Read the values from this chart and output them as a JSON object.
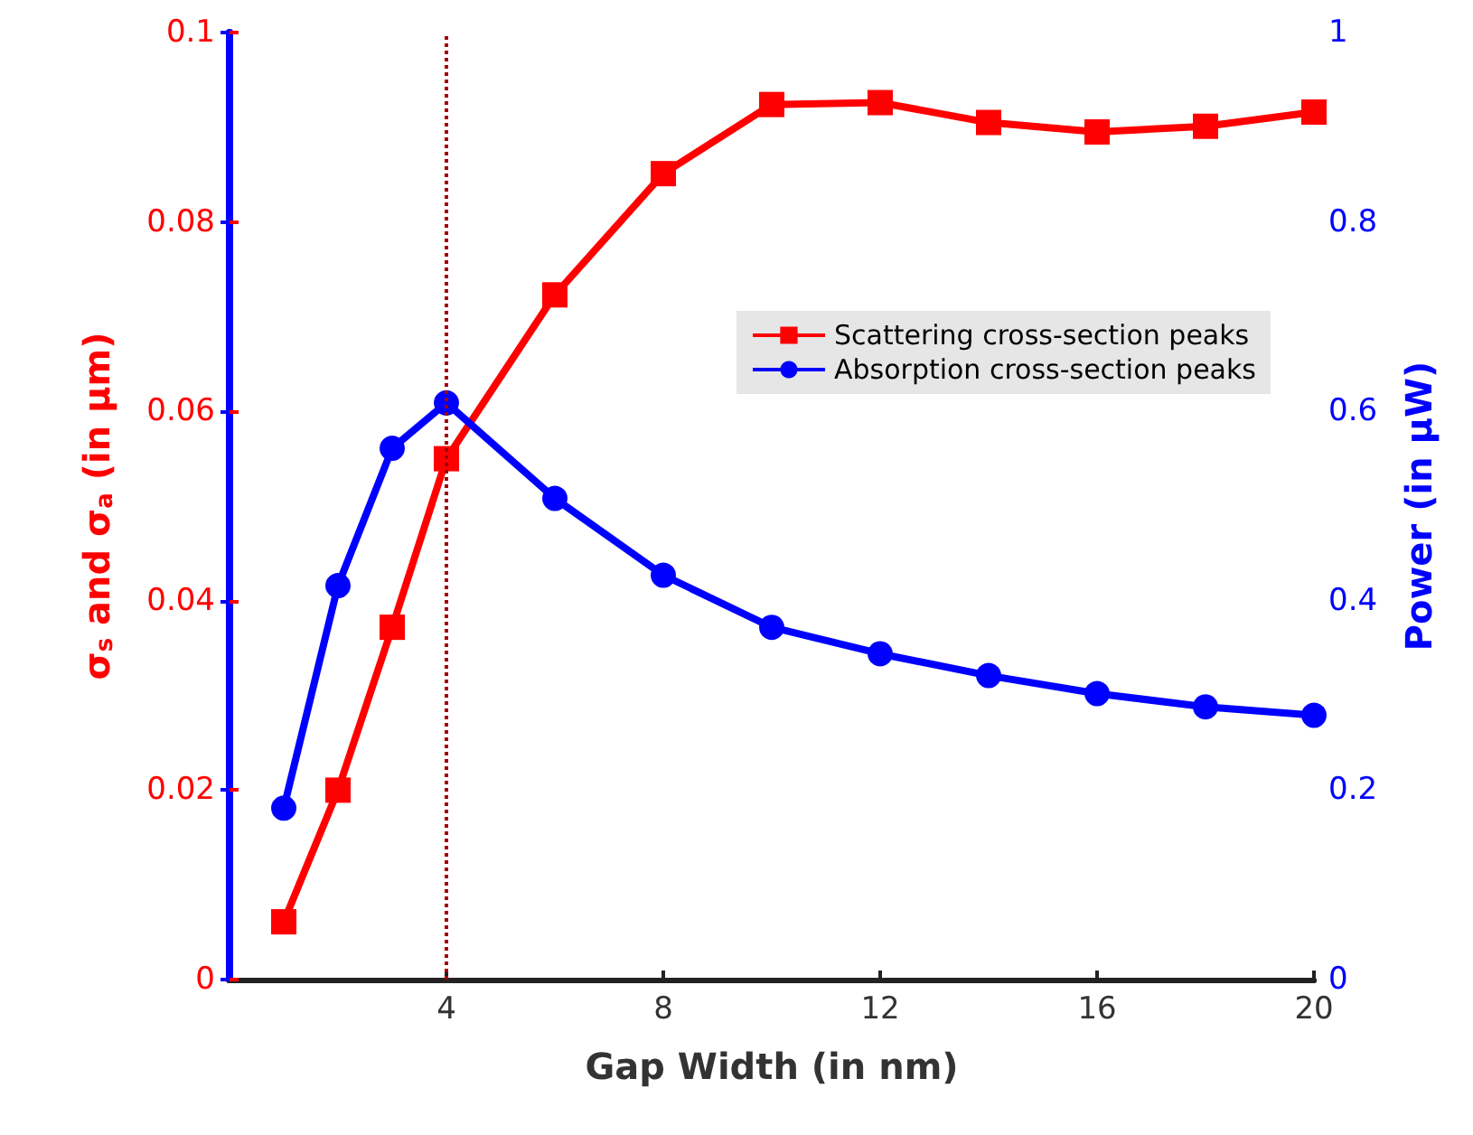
{
  "chart_data": {
    "type": "line",
    "xlabel": "Gap Width (in nm)",
    "ylabel": "σ$_{s}$ and σ$_{a}$ (in μm)",
    "y2label": "Power (in μW)",
    "xlim": [
      0,
      20
    ],
    "xticks": [
      4,
      8,
      12,
      16,
      20
    ],
    "ylim": [
      0,
      0.1
    ],
    "yticks": [
      0,
      0.02,
      0.04,
      0.06,
      0.08,
      0.1
    ],
    "y2lim": [
      0,
      1
    ],
    "y2ticks": [
      0,
      0.2,
      0.4,
      0.6,
      0.8,
      1
    ],
    "x": [
      1,
      2,
      3,
      4,
      6,
      8,
      10,
      12,
      14,
      16,
      18,
      20
    ],
    "series": [
      {
        "name": "Scattering cross-section peaks",
        "color": "#ff0000",
        "marker": "square",
        "values": [
          0.0061,
          0.02,
          0.0372,
          0.055,
          0.0723,
          0.0851,
          0.0924,
          0.0926,
          0.0905,
          0.0895,
          0.0901,
          0.0916
        ]
      },
      {
        "name": "Absorption cross-section peaks",
        "color": "#0000ff",
        "marker": "circle",
        "axis": "y2",
        "values": [
          0.181,
          0.416,
          0.561,
          0.609,
          0.508,
          0.427,
          0.372,
          0.344,
          0.321,
          0.302,
          0.288,
          0.279
        ]
      }
    ],
    "ref_lines": [
      {
        "axis": "x",
        "value": 4,
        "color": "#a00000",
        "line_style": "dotted"
      }
    ],
    "legend": "right",
    "grid": false
  }
}
